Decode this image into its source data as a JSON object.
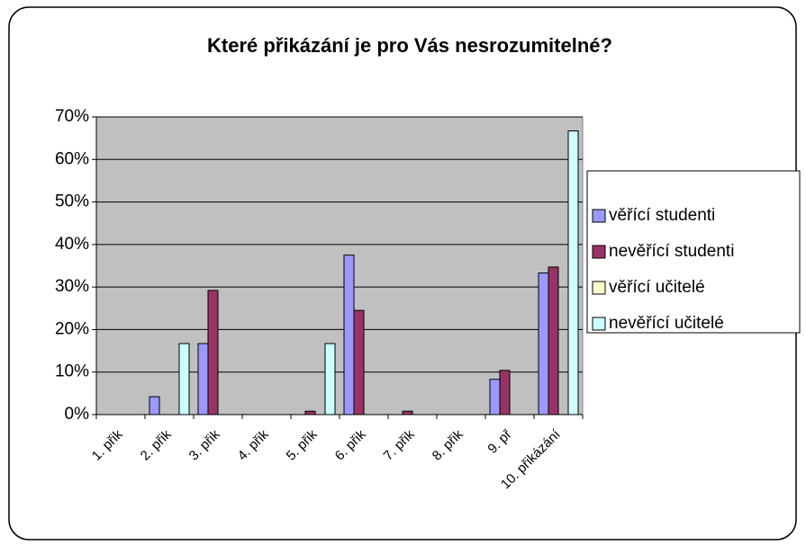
{
  "chart_data": {
    "type": "bar",
    "title": "Které přikázání je pro Vás nesrozumitelné?",
    "categories": [
      "1. přik",
      "2. přik",
      "3. přik",
      "4. přik",
      "5. přik",
      "6. přik",
      "7. přik",
      "8. přik",
      "9. př",
      "10. přikázání"
    ],
    "series": [
      {
        "name": "věřící studenti",
        "color": "#9999ff",
        "values": [
          0,
          4.2,
          16.7,
          0,
          0,
          37.5,
          0,
          0,
          8.3,
          33.3
        ]
      },
      {
        "name": "nevěřící studenti",
        "color": "#993366",
        "values": [
          0,
          0,
          29.2,
          0,
          0.8,
          24.5,
          0.8,
          0,
          10.4,
          34.7
        ]
      },
      {
        "name": "věřící učitelé",
        "color": "#ffffcc",
        "values": [
          0,
          0,
          0,
          0,
          0,
          0,
          0,
          0,
          0,
          0
        ]
      },
      {
        "name": "nevěřící učitelé",
        "color": "#ccffff",
        "values": [
          0,
          16.7,
          0,
          0,
          16.7,
          0,
          0,
          0,
          0,
          66.7
        ]
      }
    ],
    "ylim": [
      0,
      70
    ],
    "yticks": [
      {
        "value": 0,
        "label": "0%"
      },
      {
        "value": 10,
        "label": "10%"
      },
      {
        "value": 20,
        "label": "20%"
      },
      {
        "value": 30,
        "label": "30%"
      },
      {
        "value": 40,
        "label": "40%"
      },
      {
        "value": 50,
        "label": "50%"
      },
      {
        "value": 60,
        "label": "60%"
      },
      {
        "value": 70,
        "label": "70%"
      }
    ],
    "grid": true,
    "legend": "right"
  }
}
